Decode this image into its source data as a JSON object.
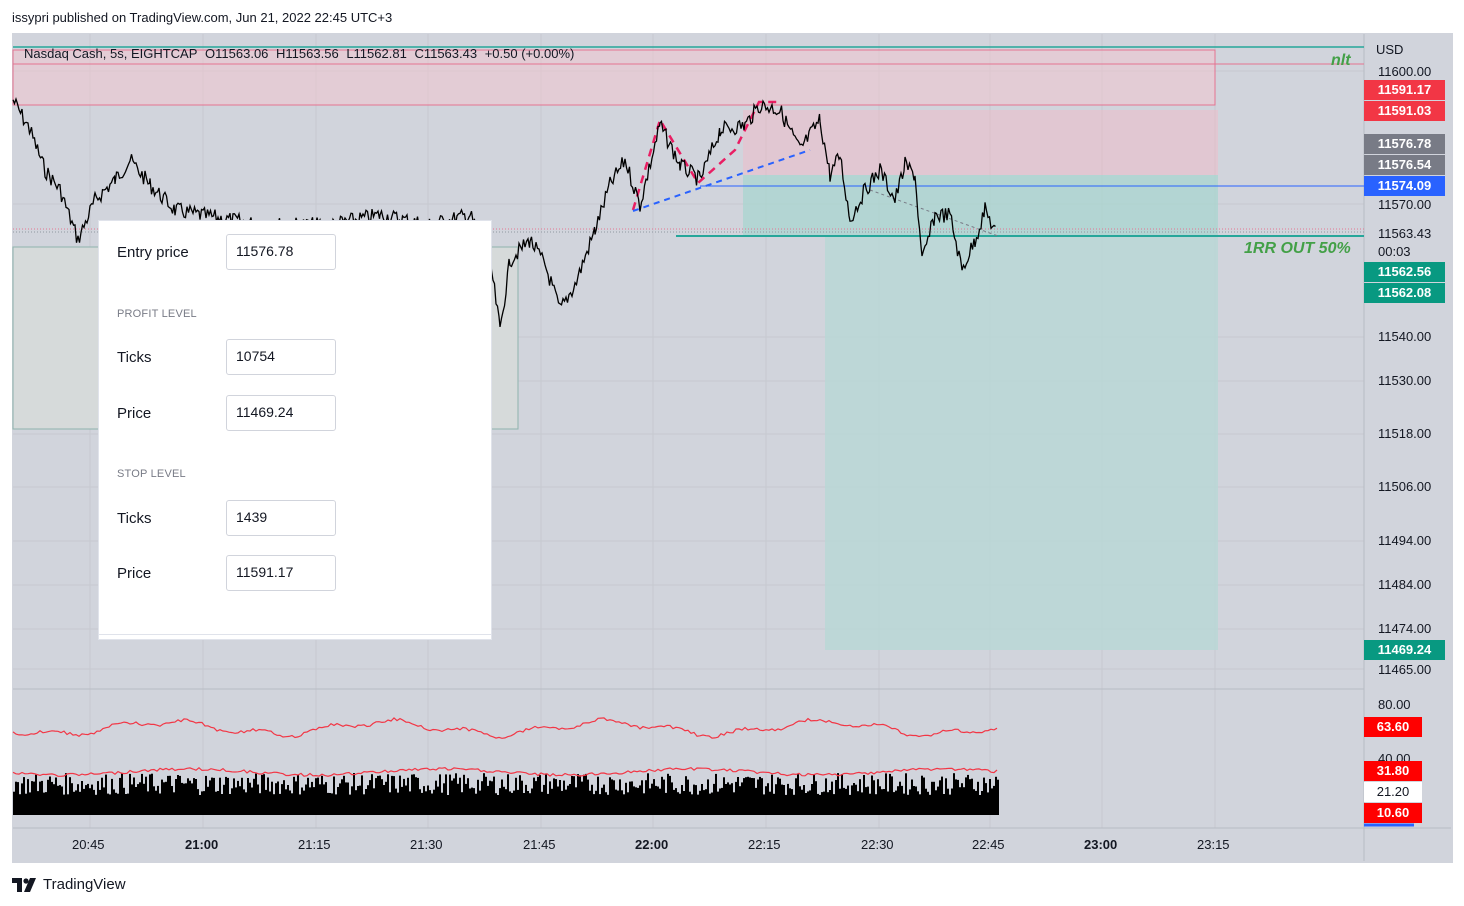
{
  "header": {
    "publisher_line": "issypri published on TradingView.com, Jun 21, 2022 22:45 UTC+3"
  },
  "legend": {
    "symbol": "Nasdaq Cash, 5s, EIGHTCAP",
    "open": "O11563.06",
    "high": "H11563.56",
    "low": "L11562.81",
    "close": "C11563.43",
    "change": "+0.50 (+0.00%)"
  },
  "panel": {
    "entry_label": "Entry price",
    "entry_value": "11576.78",
    "profit_section": "PROFIT LEVEL",
    "profit_ticks_label": "Ticks",
    "profit_ticks_value": "10754",
    "profit_price_label": "Price",
    "profit_price_value": "11469.24",
    "stop_section": "STOP LEVEL",
    "stop_ticks_label": "Ticks",
    "stop_ticks_value": "1439",
    "stop_price_label": "Price",
    "stop_price_value": "11591.17"
  },
  "annotations": {
    "nlt": "nlt",
    "rr": "1RR OUT 50%"
  },
  "price_axis": {
    "currency": "USD",
    "labels": [
      "11600.00",
      "11570.00",
      "11540.00",
      "11530.00",
      "11518.00",
      "11506.00",
      "11494.00",
      "11484.00",
      "11474.00",
      "11465.00"
    ],
    "last_price": "11563.43",
    "countdown": "00:03"
  },
  "badges": [
    {
      "value": "11591.17",
      "color": "#f23645"
    },
    {
      "value": "11591.03",
      "color": "#f23645"
    },
    {
      "value": "11576.78",
      "color": "#787b86"
    },
    {
      "value": "11576.54",
      "color": "#787b86"
    },
    {
      "value": "11574.09",
      "color": "#2962ff"
    },
    {
      "value": "11562.56",
      "color": "#089981"
    },
    {
      "value": "11562.08",
      "color": "#089981"
    },
    {
      "value": "11469.24",
      "color": "#089981"
    }
  ],
  "indicator": {
    "labels": [
      "80.00",
      "40.00"
    ],
    "badges": [
      {
        "value": "63.60",
        "color": "#ff0000"
      },
      {
        "value": "31.80",
        "color": "#ff0000"
      },
      {
        "value": "21.20",
        "color": "#ffffff"
      },
      {
        "value": "10.60",
        "color": "#ff0000"
      }
    ]
  },
  "time_axis": [
    "20:45",
    "21:00",
    "21:15",
    "21:30",
    "21:45",
    "22:00",
    "22:15",
    "22:30",
    "22:45",
    "23:00",
    "23:15"
  ],
  "footer": {
    "brand": "TradingView"
  },
  "colors": {
    "background": "#d1d4dc",
    "target_zone": "#b2dfdb",
    "stop_zone": "#f8bbd0",
    "grid": "#c2c5cc"
  }
}
